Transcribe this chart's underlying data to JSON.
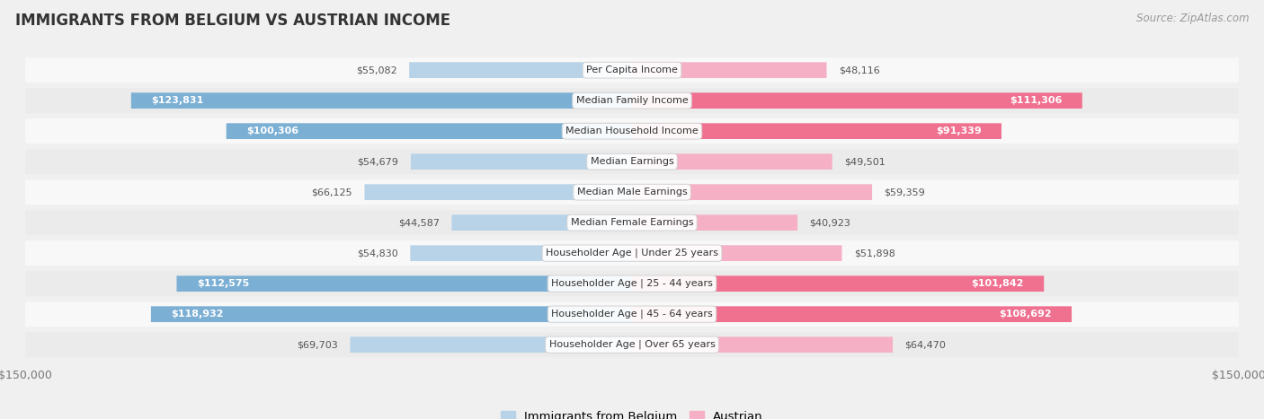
{
  "title": "IMMIGRANTS FROM BELGIUM VS AUSTRIAN INCOME",
  "source": "Source: ZipAtlas.com",
  "categories": [
    "Per Capita Income",
    "Median Family Income",
    "Median Household Income",
    "Median Earnings",
    "Median Male Earnings",
    "Median Female Earnings",
    "Householder Age | Under 25 years",
    "Householder Age | 25 - 44 years",
    "Householder Age | 45 - 64 years",
    "Householder Age | Over 65 years"
  ],
  "belgium_values": [
    55082,
    123831,
    100306,
    54679,
    66125,
    44587,
    54830,
    112575,
    118932,
    69703
  ],
  "austrian_values": [
    48116,
    111306,
    91339,
    49501,
    59359,
    40923,
    51898,
    101842,
    108692,
    64470
  ],
  "belgium_color_large": "#7bafd4",
  "belgium_color_small": "#b8d3e8",
  "austrian_color_large": "#f07090",
  "austrian_color_small": "#f5b0c5",
  "belgium_label": "Immigrants from Belgium",
  "austrian_label": "Austrian",
  "xlim": 150000,
  "background_color": "#f0f0f0",
  "row_bg_even": "#f8f8f8",
  "row_bg_odd": "#ebebeb",
  "large_threshold": 80000,
  "inside_text_color": "#ffffff",
  "outside_text_color": "#666666"
}
